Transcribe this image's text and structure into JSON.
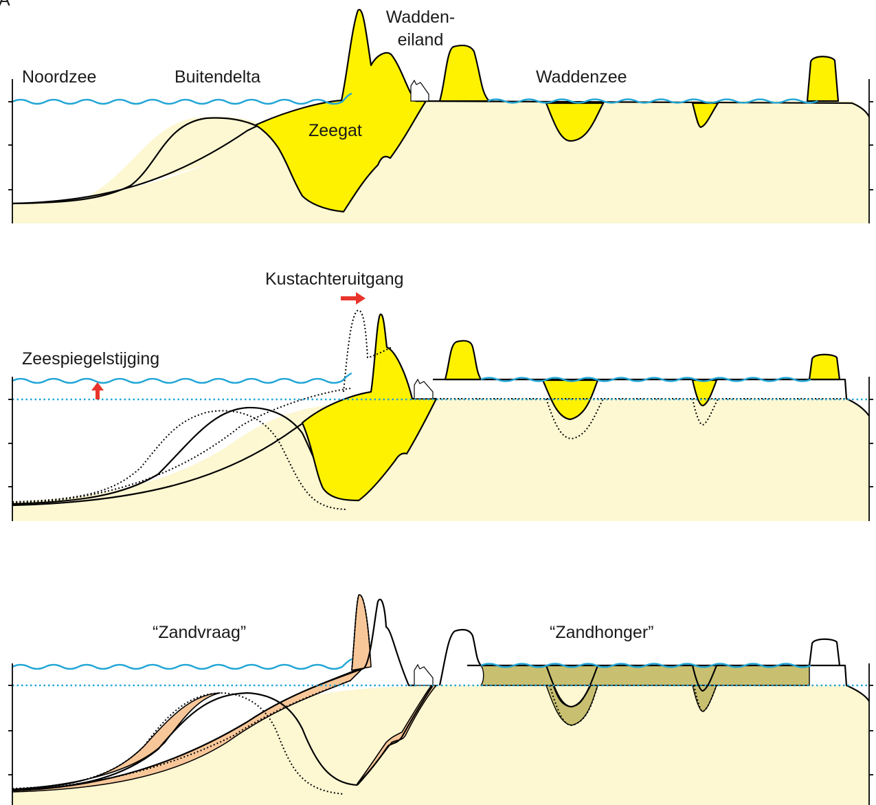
{
  "figure": {
    "panel_label": "A",
    "panel_top": {
      "labels": {
        "noordzee": "Noordzee",
        "buitendelta": "Buitendelta",
        "wadden_line1": "Wadden-",
        "wadden_line2": "eiland",
        "waddenzee": "Waddenzee",
        "zeegat": "Zeegat"
      }
    },
    "panel_middle": {
      "labels": {
        "kustachteruitgang": "Kustachteruitgang",
        "zeespiegelstijging": "Zeespiegelstijging"
      }
    },
    "panel_bottom": {
      "labels": {
        "zandvraag": "“Zandvraag”",
        "zandhonger": "“Zandhonger”"
      }
    },
    "colors": {
      "water": "#22a6d6",
      "sand": "#fdf7d2",
      "active_sand": "#fff200",
      "sand_demand": "#f8c799",
      "sand_hunger": "#c8c070",
      "arrow": "#e8342a"
    }
  }
}
